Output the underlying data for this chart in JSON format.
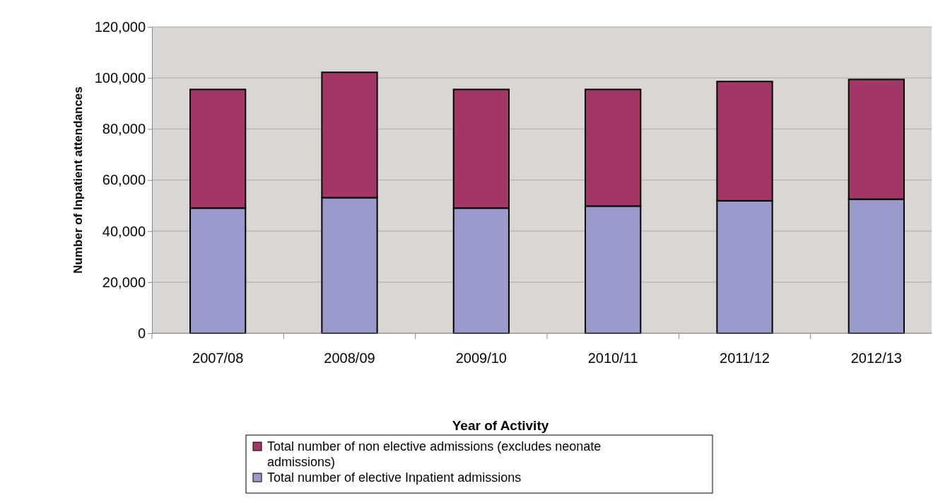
{
  "chart_data": {
    "type": "bar",
    "stacked": true,
    "ylabel": "Number of Inpatient attendances",
    "xlabel": "Year of Activity",
    "categories": [
      "2007/08",
      "2008/09",
      "2009/10",
      "2010/11",
      "2011/12",
      "2012/13"
    ],
    "series": [
      {
        "name": "Total number of elective Inpatient admissions",
        "color": "#9999cc",
        "values": [
          49000,
          53100,
          49000,
          49800,
          51900,
          52500
        ]
      },
      {
        "name": "Total number of non elective admissions (excludes neonate admissions)",
        "color": "#a33868",
        "values": [
          46500,
          49100,
          46500,
          45700,
          46700,
          46900
        ]
      }
    ],
    "ylim": [
      0,
      120000
    ],
    "yticks": [
      {
        "value": 0,
        "label": "0"
      },
      {
        "value": 20000,
        "label": "20,000"
      },
      {
        "value": 40000,
        "label": "40,000"
      },
      {
        "value": 60000,
        "label": "60,000"
      },
      {
        "value": 80000,
        "label": "80,000"
      },
      {
        "value": 100000,
        "label": "100,000"
      },
      {
        "value": 120000,
        "label": "120,000"
      }
    ],
    "grid": "y",
    "legend": "bottom"
  }
}
